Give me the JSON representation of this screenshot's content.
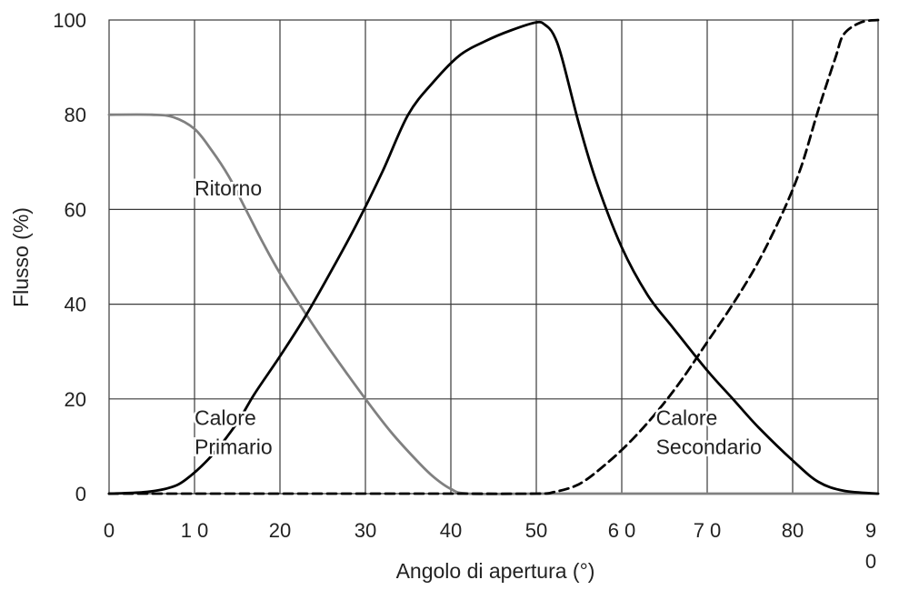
{
  "chart_data": {
    "type": "line",
    "title": "",
    "xlabel": "Angolo di apertura (°)",
    "ylabel": "Flusso (%)",
    "xlim": [
      0,
      90
    ],
    "ylim": [
      0,
      100
    ],
    "grid": true,
    "legend": "none",
    "x_ticks": [
      {
        "value": 0,
        "label": "0"
      },
      {
        "value": 10,
        "label": "1 0"
      },
      {
        "value": 20,
        "label": "20"
      },
      {
        "value": 30,
        "label": "30"
      },
      {
        "value": 40,
        "label": "40"
      },
      {
        "value": 50,
        "label": "50"
      },
      {
        "value": 60,
        "label": "6 0"
      },
      {
        "value": 70,
        "label": "7 0"
      },
      {
        "value": 80,
        "label": "80"
      },
      {
        "value": 90,
        "label": "9\n0"
      }
    ],
    "y_ticks": [
      {
        "value": 0,
        "label": "0"
      },
      {
        "value": 20,
        "label": "20"
      },
      {
        "value": 40,
        "label": "40"
      },
      {
        "value": 60,
        "label": "60"
      },
      {
        "value": 80,
        "label": "80"
      },
      {
        "value": 100,
        "label": "100"
      }
    ],
    "series": [
      {
        "name": "Ritorno",
        "color": "#808080",
        "dash": "solid",
        "label_lines": [
          "Ritorno"
        ],
        "label_at": [
          10,
          63
        ],
        "points": [
          [
            0,
            80
          ],
          [
            5,
            80
          ],
          [
            7.5,
            79.5
          ],
          [
            10,
            77
          ],
          [
            12,
            72.5
          ],
          [
            14,
            67
          ],
          [
            16,
            60
          ],
          [
            18,
            53
          ],
          [
            20,
            46.5
          ],
          [
            23,
            38
          ],
          [
            26,
            30
          ],
          [
            30,
            20
          ],
          [
            33,
            13
          ],
          [
            36,
            7
          ],
          [
            38,
            3.5
          ],
          [
            40,
            1
          ],
          [
            42,
            0
          ],
          [
            50,
            0
          ],
          [
            60,
            0
          ],
          [
            70,
            0
          ],
          [
            80,
            0
          ],
          [
            90,
            0
          ]
        ]
      },
      {
        "name": "Calore Primario",
        "color": "#000000",
        "dash": "solid",
        "label_lines": [
          "Calore",
          "Primario"
        ],
        "label_at": [
          10,
          14.5
        ],
        "points": [
          [
            0,
            0
          ],
          [
            4,
            0.3
          ],
          [
            7,
            1.2
          ],
          [
            9,
            3
          ],
          [
            12,
            8
          ],
          [
            15,
            15
          ],
          [
            17,
            21
          ],
          [
            20,
            29
          ],
          [
            23,
            37.5
          ],
          [
            26,
            47
          ],
          [
            29,
            57
          ],
          [
            32,
            68
          ],
          [
            35,
            80
          ],
          [
            38,
            87
          ],
          [
            41,
            92.5
          ],
          [
            44,
            95.5
          ],
          [
            47,
            97.8
          ],
          [
            50,
            99.5
          ],
          [
            51,
            99
          ],
          [
            52,
            97
          ],
          [
            53,
            92
          ],
          [
            55,
            78
          ],
          [
            57,
            66
          ],
          [
            60,
            52
          ],
          [
            63,
            42
          ],
          [
            66,
            35
          ],
          [
            70,
            26
          ],
          [
            73,
            20
          ],
          [
            76,
            14
          ],
          [
            80,
            7
          ],
          [
            83,
            2.5
          ],
          [
            86,
            0.6
          ],
          [
            90,
            0
          ]
        ]
      },
      {
        "name": "Calore Secondario",
        "color": "#000000",
        "dash": "dashed",
        "label_lines": [
          "Calore",
          "Secondario"
        ],
        "label_at": [
          64,
          14.5
        ],
        "points": [
          [
            0,
            0
          ],
          [
            10,
            0
          ],
          [
            20,
            0
          ],
          [
            30,
            0
          ],
          [
            40,
            0
          ],
          [
            50,
            0
          ],
          [
            52,
            0.3
          ],
          [
            55,
            2
          ],
          [
            58,
            6
          ],
          [
            61,
            11
          ],
          [
            64,
            17
          ],
          [
            67,
            24
          ],
          [
            70,
            32
          ],
          [
            73,
            40
          ],
          [
            76,
            49
          ],
          [
            79,
            60
          ],
          [
            81,
            69
          ],
          [
            83,
            81
          ],
          [
            85,
            92
          ],
          [
            86,
            97
          ],
          [
            88,
            99.5
          ],
          [
            90,
            100
          ]
        ]
      }
    ]
  }
}
